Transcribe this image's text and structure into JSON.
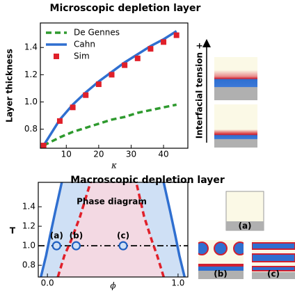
{
  "chart_data": [
    {
      "type": "line",
      "title": "Microscopic depletion layer",
      "x_label": "κ",
      "y_label": "Layer thickness",
      "xlim": [
        2,
        47.5
      ],
      "xticks": [
        10,
        20,
        30,
        40
      ],
      "ylim": [
        0.66,
        1.58
      ],
      "yticks": [
        0.8,
        {
          "value": 1.0,
          "label": "1.0"
        },
        1.2,
        1.4
      ],
      "legend": "upper left",
      "series": [
        {
          "name": "De Gennes",
          "color": "#2e9a2e",
          "style": "dashed",
          "x": [
            3,
            8,
            12,
            16,
            20,
            24,
            28,
            32,
            36,
            40,
            44
          ],
          "values": [
            0.68,
            0.74,
            0.78,
            0.81,
            0.84,
            0.87,
            0.89,
            0.92,
            0.94,
            0.96,
            0.98
          ]
        },
        {
          "name": "Cahn",
          "color": "#2f6fd0",
          "style": "solid",
          "x": [
            3,
            8,
            12,
            16,
            20,
            24,
            28,
            32,
            36,
            40,
            44
          ],
          "values": [
            0.68,
            0.87,
            0.98,
            1.07,
            1.15,
            1.22,
            1.29,
            1.35,
            1.41,
            1.46,
            1.52
          ]
        },
        {
          "name": "Sim",
          "color": "#e0202a",
          "style": "markers",
          "x": [
            3,
            8,
            12,
            16,
            20,
            24,
            28,
            32,
            36,
            40,
            44
          ],
          "values": [
            0.68,
            0.86,
            0.96,
            1.05,
            1.13,
            1.2,
            1.27,
            1.32,
            1.39,
            1.44,
            1.49
          ]
        }
      ]
    },
    {
      "type": "line",
      "title": "Macroscopic depletion layer",
      "annotation": "Phase diagram",
      "x_label": "ϕ",
      "y_label": "T",
      "xlim": [
        -0.07,
        1.075
      ],
      "xticks": [
        {
          "value": 0,
          "label": "0.0"
        },
        {
          "value": 1,
          "label": "1.0"
        }
      ],
      "ylim": [
        0.68,
        1.65
      ],
      "yticks": [
        0.8,
        {
          "value": 1.0,
          "label": "1.0"
        },
        1.2,
        1.4
      ],
      "series": [
        {
          "color": "#2f6fd0",
          "style": "solid",
          "fill": "#cfe0f5",
          "x": [
            -0.05,
            -0.01,
            0.02,
            0.06,
            0.11
          ],
          "values": [
            0.68,
            0.9,
            1.1,
            1.35,
            1.65
          ]
        },
        {
          "color": "#2f6fd0",
          "style": "solid",
          "x": [
            1.05,
            1.01,
            0.98,
            0.94,
            0.89
          ],
          "values": [
            0.68,
            0.9,
            1.1,
            1.35,
            1.65
          ]
        },
        {
          "color": "#e0202a",
          "style": "dashed",
          "fill": "#f3d9e3",
          "x": [
            0.08,
            0.13,
            0.18,
            0.25,
            0.33
          ],
          "values": [
            0.68,
            0.9,
            1.05,
            1.3,
            1.65
          ]
        },
        {
          "color": "#e0202a",
          "style": "dashed",
          "x": [
            0.89,
            0.84,
            0.8,
            0.74,
            0.68
          ],
          "values": [
            0.68,
            0.9,
            1.05,
            1.3,
            1.65
          ]
        },
        {
          "color": "#1f5fc0",
          "style": "circles",
          "x": [
            0.07,
            0.22,
            0.58
          ],
          "values": [
            1.0,
            1.0,
            1.0
          ],
          "point_labels": [
            "(a)",
            "(b)",
            "(c)"
          ]
        }
      ],
      "hline": {
        "value": 1.0,
        "color": "#000000",
        "style": "dashdot"
      }
    }
  ],
  "insets": {
    "tension_label": "Interfacial tension +",
    "labels": [
      "(a)",
      "(b)",
      "(c)"
    ]
  }
}
